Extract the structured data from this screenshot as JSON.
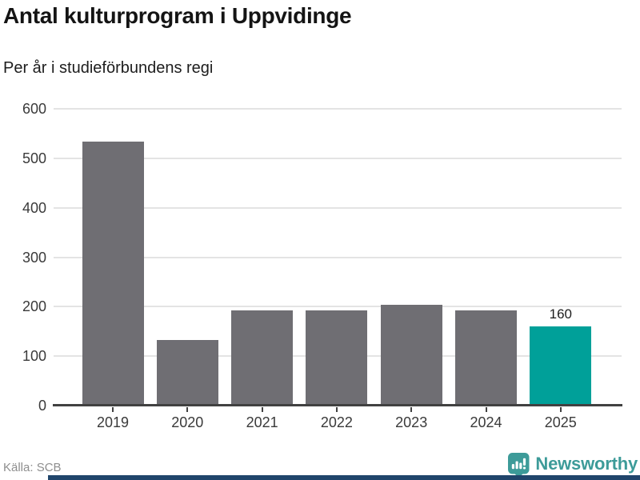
{
  "chart_data": {
    "type": "bar",
    "title": "Antal kulturprogram i Uppvidinge",
    "subtitle": "Per år i studieförbundens regi",
    "categories": [
      "2019",
      "2020",
      "2021",
      "2022",
      "2023",
      "2024",
      "2025"
    ],
    "values": [
      534,
      133,
      193,
      192,
      204,
      193,
      160
    ],
    "highlight_index": 6,
    "highlighted_category": "2025",
    "value_label": {
      "index": 6,
      "text": "160"
    },
    "xlabel": "",
    "ylabel": "",
    "ylim": [
      0,
      600
    ],
    "yticks": [
      0,
      100,
      200,
      300,
      400,
      500,
      600
    ],
    "grid": true,
    "legend": "none",
    "bar_color": "#6f6e73",
    "highlight_color": "#00a099",
    "gridline_color": "#e4e4e4",
    "axis_color": "#414141"
  },
  "footer": {
    "source": "Källa: SCB",
    "brand_name": "Newsworthy",
    "brand_color": "#3d9b99",
    "accent_bar_color": "#20456b",
    "logo_icon": "bar-chart-bubble-icon"
  }
}
